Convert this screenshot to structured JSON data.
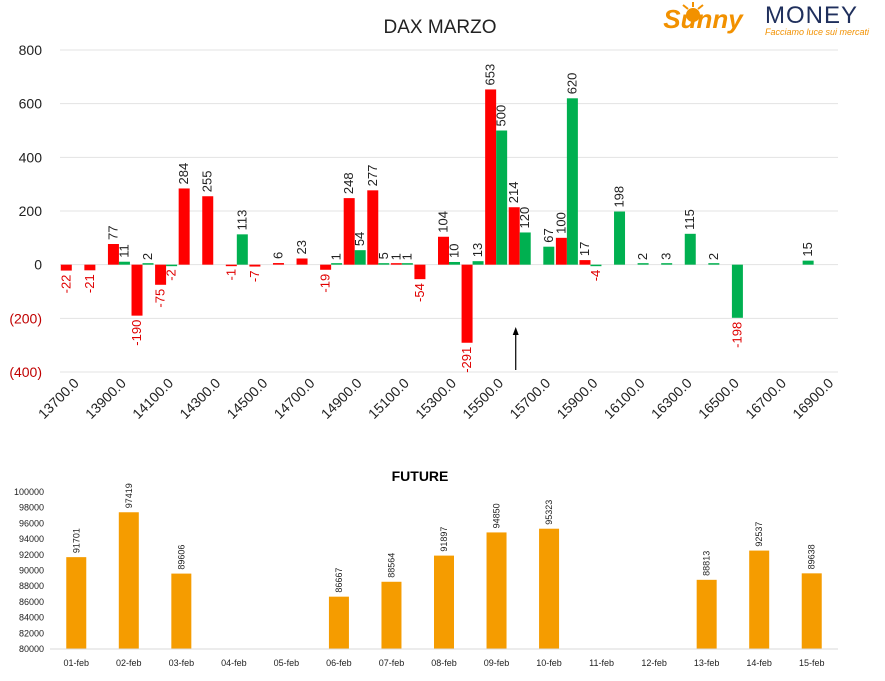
{
  "logo": {
    "sunny": "Sunny",
    "money": "MONEY",
    "tagline": "Facciamo luce sui mercati"
  },
  "colors": {
    "red": "#ff0000",
    "green": "#00b050",
    "orange": "#f59c00",
    "logo_orange": "#f29100",
    "logo_navy": "#1f2f5c"
  },
  "chart_data": [
    {
      "type": "bar",
      "title": "DAX MARZO",
      "xlabel": "",
      "ylabel": "",
      "ylim": [
        -400,
        800
      ],
      "y_ticks": [
        {
          "value": 800,
          "label": "800"
        },
        {
          "value": 600,
          "label": "600"
        },
        {
          "value": 400,
          "label": "400"
        },
        {
          "value": 200,
          "label": "200"
        },
        {
          "value": 0,
          "label": "0"
        },
        {
          "value": -200,
          "label": "(200)"
        },
        {
          "value": -400,
          "label": "(400)"
        }
      ],
      "categories": [
        "13700.0",
        "13800.0",
        "13900.0",
        "14000.0",
        "14100.0",
        "14200.0",
        "14300.0",
        "14400.0",
        "14500.0",
        "14600.0",
        "14700.0",
        "14800.0",
        "14900.0",
        "15000.0",
        "15100.0",
        "15200.0",
        "15300.0",
        "15400.0",
        "15500.0",
        "15600.0",
        "15700.0",
        "15800.0",
        "15900.0",
        "16000.0",
        "16100.0",
        "16200.0",
        "16300.0",
        "16400.0",
        "16500.0",
        "16600.0",
        "16700.0",
        "16800.0",
        "16900.0"
      ],
      "x_tick_labels": [
        "13700.0",
        "13900.0",
        "14100.0",
        "14300.0",
        "14500.0",
        "14700.0",
        "14900.0",
        "15100.0",
        "15300.0",
        "15500.0",
        "15700.0",
        "15900.0",
        "16100.0",
        "16300.0",
        "16500.0",
        "16700.0",
        "16900.0"
      ],
      "series": [
        {
          "color": "#ff0000",
          "values": [
            -22,
            -21,
            77,
            -190,
            -75,
            284,
            255,
            -1,
            -7,
            6,
            23,
            -19,
            248,
            277,
            1,
            -54,
            104,
            -291,
            653,
            214,
            null,
            100,
            17,
            null,
            null,
            null,
            null,
            null,
            null,
            null,
            null,
            null,
            null
          ],
          "labels": [
            "-22",
            "-21",
            "77",
            "-190",
            "-75",
            "284",
            "255",
            "-1",
            "-7",
            "6",
            "23",
            "-19",
            "248",
            "277",
            "1",
            "-54",
            "104",
            "-291",
            "653",
            "214",
            "",
            "100",
            "17",
            "",
            "",
            "",
            "",
            "",
            "",
            "",
            "",
            "",
            ""
          ]
        },
        {
          "color": "#00b050",
          "values": [
            null,
            null,
            11,
            2,
            -2,
            null,
            null,
            113,
            null,
            null,
            null,
            1,
            54,
            5,
            1,
            null,
            10,
            13,
            500,
            120,
            67,
            620,
            -4,
            198,
            2,
            3,
            115,
            2,
            -198,
            null,
            null,
            15,
            null
          ],
          "labels": [
            "",
            "",
            "11",
            "2",
            "-2",
            "",
            "",
            "113",
            "",
            "",
            "",
            "1",
            "54",
            "5",
            "1",
            "",
            "10",
            "13",
            "500",
            "120",
            "67",
            "620",
            "-4",
            "198",
            "2",
            "3",
            "115",
            "2",
            "-198",
            "",
            "",
            "15",
            ""
          ]
        }
      ],
      "annotations": [
        {
          "type": "arrow-up",
          "category": "15600.0"
        }
      ],
      "grid": true
    },
    {
      "type": "bar",
      "title": "FUTURE",
      "xlabel": "",
      "ylabel": "",
      "ylim": [
        80000,
        100000
      ],
      "y_ticks": [
        "80000",
        "82000",
        "84000",
        "86000",
        "88000",
        "90000",
        "92000",
        "94000",
        "96000",
        "98000",
        "100000"
      ],
      "categories": [
        "01-feb",
        "02-feb",
        "03-feb",
        "04-feb",
        "05-feb",
        "06-feb",
        "07-feb",
        "08-feb",
        "09-feb",
        "10-feb",
        "11-feb",
        "12-feb",
        "13-feb",
        "14-feb",
        "15-feb"
      ],
      "values": [
        91701,
        97419,
        89606,
        null,
        null,
        86667,
        88564,
        91897,
        94850,
        95323,
        null,
        null,
        88813,
        92537,
        89638
      ],
      "labels": [
        "91701",
        "97419",
        "89606",
        "",
        "",
        "86667",
        "88564",
        "91897",
        "94850",
        "95323",
        "",
        "",
        "88813",
        "92537",
        "89638"
      ],
      "color": "#f59c00",
      "grid": false
    }
  ]
}
